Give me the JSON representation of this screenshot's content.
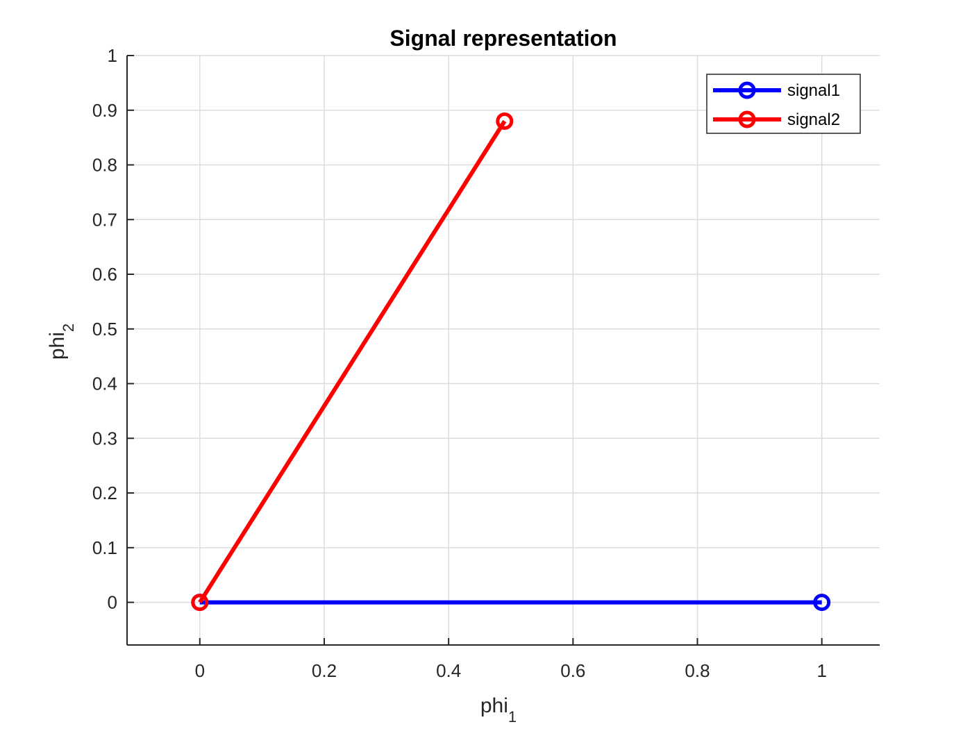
{
  "chart_data": {
    "type": "line",
    "title": "Signal representation",
    "xlabel": {
      "base": "phi",
      "subscript": "1"
    },
    "ylabel": {
      "base": "phi",
      "subscript": "2"
    },
    "xlim": [
      -0.117,
      1.093
    ],
    "ylim": [
      -0.078,
      1.0
    ],
    "xticks": [
      0,
      0.2,
      0.4,
      0.6,
      0.8,
      1
    ],
    "xtick_labels": [
      "0",
      "0.2",
      "0.4",
      "0.6",
      "0.8",
      "1"
    ],
    "yticks": [
      0,
      0.1,
      0.2,
      0.3,
      0.4,
      0.5,
      0.6,
      0.7,
      0.8,
      0.9,
      1
    ],
    "ytick_labels": [
      "0",
      "0.1",
      "0.2",
      "0.3",
      "0.4",
      "0.5",
      "0.6",
      "0.7",
      "0.8",
      "0.9",
      "1"
    ],
    "grid": true,
    "legend_position": "top-right",
    "series": [
      {
        "name": "signal1",
        "color": "#0000ff",
        "marker": "circle",
        "x": [
          0,
          1
        ],
        "y": [
          0,
          0
        ]
      },
      {
        "name": "signal2",
        "color": "#ff0000",
        "marker": "circle",
        "x": [
          0,
          0.49
        ],
        "y": [
          0,
          0.88
        ]
      }
    ]
  }
}
